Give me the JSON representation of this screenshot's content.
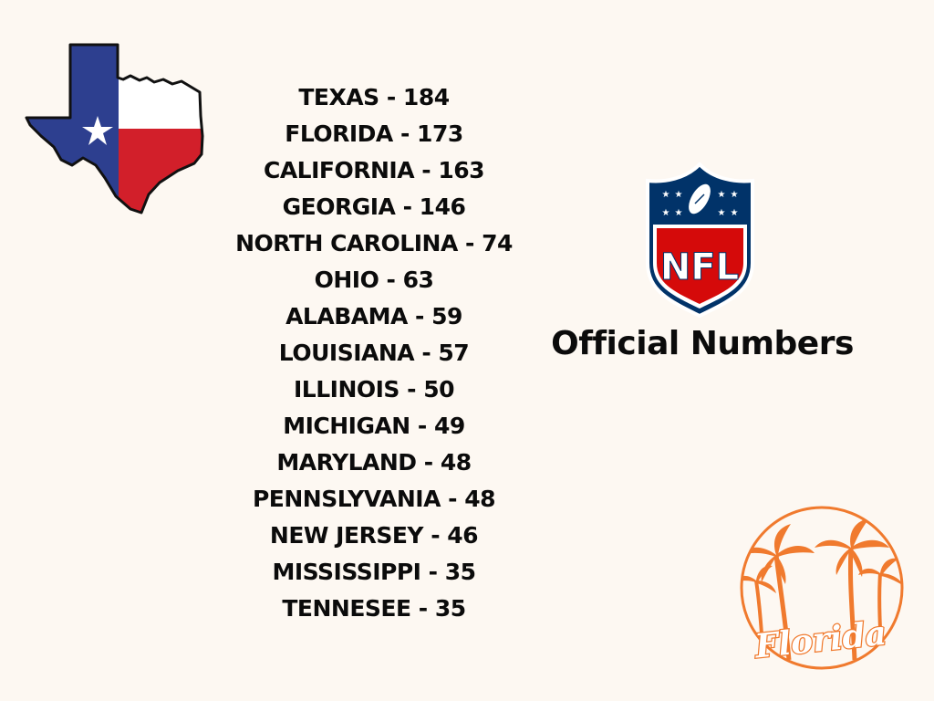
{
  "states": [
    {
      "label": "TEXAS - 184"
    },
    {
      "label": "FLORIDA - 173"
    },
    {
      "label": "CALIFORNIA - 163"
    },
    {
      "label": "GEORGIA - 146"
    },
    {
      "label": "NORTH CAROLINA - 74"
    },
    {
      "label": "OHIO - 63"
    },
    {
      "label": "ALABAMA - 59"
    },
    {
      "label": "LOUISIANA - 57"
    },
    {
      "label": "ILLINOIS - 50"
    },
    {
      "label": "MICHIGAN - 49"
    },
    {
      "label": "MARYLAND - 48"
    },
    {
      "label": "PENNSLYVANIA - 48"
    },
    {
      "label": "NEW JERSEY - 46"
    },
    {
      "label": "MISSISSIPPI - 35"
    },
    {
      "label": "TENNESEE - 35"
    }
  ],
  "headline": "Official Numbers",
  "nfl_logo": {
    "text": "NFL",
    "icon": "nfl-shield-icon"
  },
  "florida_badge": {
    "text": "Florida",
    "icon": "palm-trees-icon"
  },
  "texas_graphic": {
    "icon": "texas-flag-map-icon"
  },
  "colors": {
    "background": "#fdf8f2",
    "text": "#0b0b0b",
    "texas_blue": "#2d3f8f",
    "texas_red": "#d21f2a",
    "nfl_navy": "#013369",
    "nfl_red": "#d50a0a",
    "florida_orange": "#f07a2e"
  }
}
